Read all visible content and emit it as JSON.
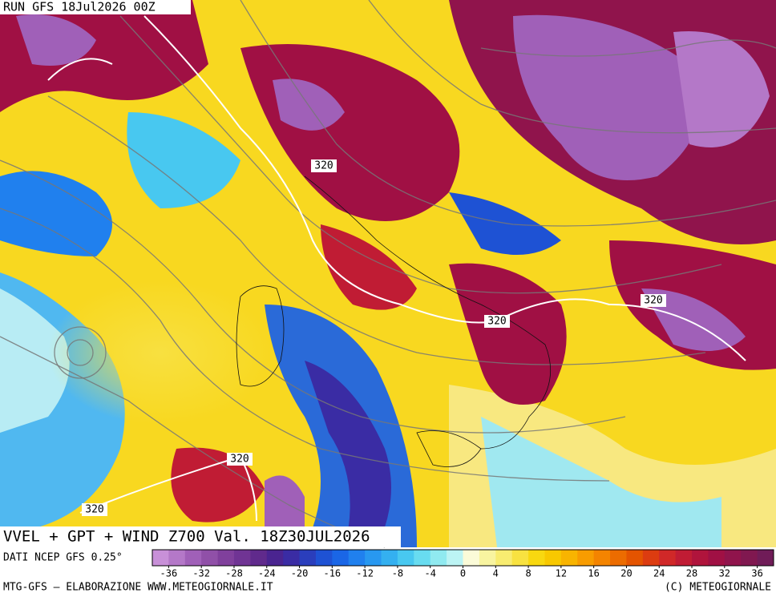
{
  "header": {
    "run": "RUN GFS 18Jul2026 00Z"
  },
  "title": "VVEL + GPT + WIND Z700 Val. 18Z30JUL2026",
  "source": "DATI NCEP GFS 0.25°",
  "footer": {
    "left": "MTG-GFS — ELABORAZIONE WWW.METEOGIORNALE.IT",
    "right": "(C) METEOGIORNALE"
  },
  "contour_labels": [
    "320",
    "320",
    "320",
    "320",
    "320"
  ],
  "colorbar": {
    "lim": [
      -38,
      38
    ],
    "ticks": [
      -36,
      -32,
      -28,
      -24,
      -20,
      -16,
      -12,
      -8,
      -4,
      0,
      4,
      8,
      12,
      16,
      20,
      24,
      28,
      32,
      36
    ],
    "colors": [
      "#c890d8",
      "#b478c8",
      "#a060b8",
      "#9050a8",
      "#80409c",
      "#703494",
      "#602a8c",
      "#4a2490",
      "#3a2ca4",
      "#2a3ebc",
      "#1e52d4",
      "#1a66e6",
      "#2080ee",
      "#2898f0",
      "#34b0f0",
      "#48c8f0",
      "#68dcf0",
      "#90eaf0",
      "#bcf4f4",
      "#fbfbd8",
      "#f8f4a0",
      "#f8ec70",
      "#f8e240",
      "#f8d810",
      "#f8c800",
      "#f8b400",
      "#f89c00",
      "#f48400",
      "#ec6c00",
      "#e45400",
      "#dc3c10",
      "#d02828",
      "#c01c34",
      "#b0143c",
      "#a01044",
      "#90144c",
      "#801850",
      "#701c58"
    ]
  }
}
